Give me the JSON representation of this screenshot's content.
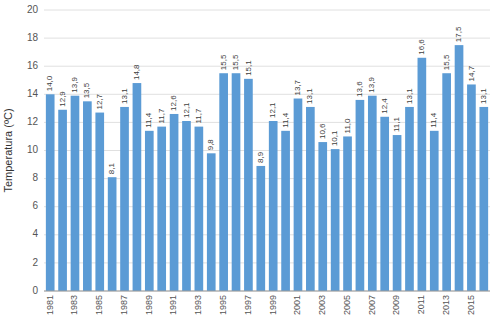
{
  "chart_data": {
    "type": "bar",
    "ylabel": "Temperatura (ºC)",
    "categories": [
      "1981",
      null,
      "1983",
      null,
      "1985",
      null,
      "1987",
      null,
      "1989",
      null,
      "1991",
      null,
      "1993",
      null,
      "1995",
      null,
      "1997",
      null,
      "1999",
      null,
      "2001",
      null,
      "2003",
      null,
      "2005",
      null,
      "2007",
      null,
      "2009",
      null,
      "2011",
      null,
      "2013",
      null,
      "2015",
      null
    ],
    "values": [
      14.0,
      12.9,
      13.9,
      13.5,
      12.7,
      8.1,
      13.1,
      14.8,
      11.4,
      11.7,
      12.6,
      12.1,
      11.7,
      9.8,
      15.5,
      15.5,
      15.1,
      8.9,
      12.1,
      11.4,
      13.7,
      13.1,
      10.6,
      10.1,
      11.0,
      13.6,
      13.9,
      12.4,
      11.1,
      13.1,
      16.6,
      11.4,
      15.5,
      17.5,
      14.7,
      13.1
    ],
    "value_labels": [
      "14,0",
      "12,9",
      "13,9",
      "13,5",
      "12,7",
      "8,1",
      "13,1",
      "14,8",
      "11,4",
      "11,7",
      "12,6",
      "12,1",
      "11,7",
      "9,8",
      "15,5",
      "15,5",
      "15,1",
      "8,9",
      "12,1",
      "11,4",
      "13,7",
      "13,1",
      "10,6",
      "10,1",
      "11,0",
      "13,6",
      "13,9",
      "12,4",
      "11,1",
      "13,1",
      "16,6",
      "11,4",
      "15,5",
      "17,5",
      "14,7",
      "13,1"
    ],
    "color": "#5B9BD5",
    "ylim": [
      0,
      20
    ],
    "yticks": [
      0,
      2,
      4,
      6,
      8,
      10,
      12,
      14,
      16,
      18,
      20
    ],
    "grid": true,
    "data_labels": true
  }
}
